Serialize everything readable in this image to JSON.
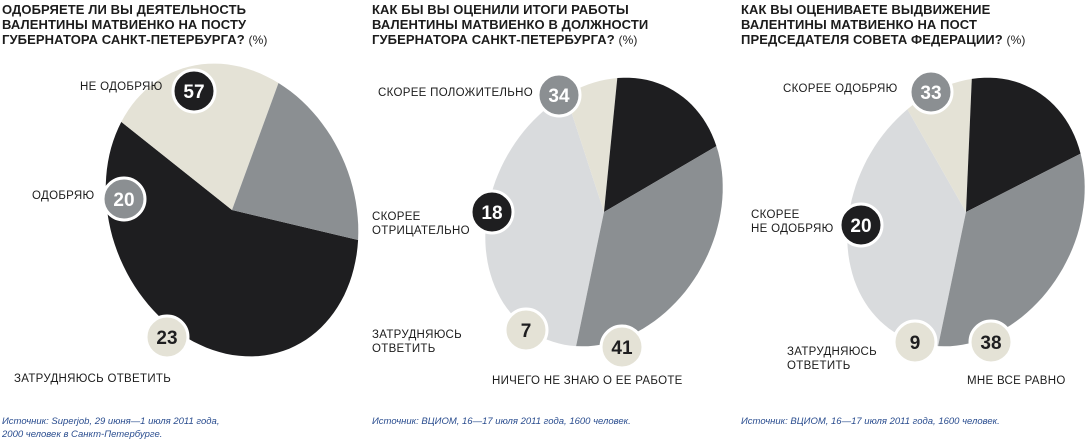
{
  "panels": [
    {
      "question": "ОДОБРЯЕТЕ ЛИ ВЫ ДЕЯТЕЛЬНОСТЬ\nВАЛЕНТИНЫ МАТВИЕНКО НА ПОСТУ\nГУБЕРНАТОРА САНКТ-ПЕТЕРБУРГА?",
      "unit": "(%)",
      "source": "Источник: Superjob, 29 июня—1 июля 2011 года,\n2000 человек в Санкт-Петербурге."
    },
    {
      "question": "КАК БЫ ВЫ ОЦЕНИЛИ ИТОГИ РАБОТЫ\nВАЛЕНТИНЫ МАТВИЕНКО В ДОЛЖНОСТИ\nГУБЕРНАТОРА САНКТ-ПЕТЕРБУРГА?",
      "unit": "(%)",
      "source": "Источник: ВЦИОМ, 16—17 июля 2011 года, 1600 человек."
    },
    {
      "question": "КАК ВЫ ОЦЕНИВАЕТЕ ВЫДВИЖЕНИЕ\nВАЛЕНТИНЫ МАТВИЕНКО НА ПОСТ\nПРЕДСЕДАТЕЛЯ СОВЕТА ФЕДЕРАЦИИ?",
      "unit": "(%)",
      "source": "Источник: ВЦИОМ, 16—17 июля 2011 года, 1600 человек."
    }
  ],
  "colors": {
    "dark": "#1e1e20",
    "mid": "#8b8f92",
    "light": "#d9dbdd",
    "cream": "#e4e2d6",
    "badge_dark": "#1e1e20",
    "badge_mid": "#8b8f92",
    "badge_light": "#e4e2d6"
  },
  "chart_data": [
    {
      "type": "pie",
      "title": "ОДОБРЯЕТЕ ЛИ ВЫ ДЕЯТЕЛЬНОСТЬ ВАЛЕНТИНЫ МАТВИЕНКО НА ПОСТУ ГУБЕРНАТОРА САНКТ-ПЕТЕРБУРГА? (%)",
      "slices": [
        {
          "label": "НЕ ОДОБРЯЮ",
          "value": 57,
          "color": "#1e1e20"
        },
        {
          "label": "ЗАТРУДНЯЮСЬ ОТВЕТИТЬ",
          "value": 23,
          "color": "#e4e2d6"
        },
        {
          "label": "ОДОБРЯЮ",
          "value": 20,
          "color": "#8b8f92"
        }
      ]
    },
    {
      "type": "pie",
      "title": "КАК БЫ ВЫ ОЦЕНИЛИ ИТОГИ РАБОТЫ ВАЛЕНТИНЫ МАТВИЕНКО В ДОЛЖНОСТИ ГУБЕРНАТОРА САНКТ-ПЕТЕРБУРГА? (%)",
      "slices": [
        {
          "label": "НИЧЕГО НЕ ЗНАЮ О ЕЕ РАБОТЕ",
          "value": 41,
          "color": "#d9dbdd"
        },
        {
          "label": "ЗАТРУДНЯЮСЬ ОТВЕТИТЬ",
          "value": 7,
          "color": "#e4e2d6"
        },
        {
          "label": "СКОРЕЕ ОТРИЦАТЕЛЬНО",
          "value": 18,
          "color": "#1e1e20"
        },
        {
          "label": "СКОРЕЕ ПОЛОЖИТЕЛЬНО",
          "value": 34,
          "color": "#8b8f92"
        }
      ]
    },
    {
      "type": "pie",
      "title": "КАК ВЫ ОЦЕНИВАЕТЕ ВЫДВИЖЕНИЕ ВАЛЕНТИНЫ МАТВИЕНКО НА ПОСТ ПРЕДСЕДАТЕЛЯ СОВЕТА ФЕДЕРАЦИИ? (%)",
      "slices": [
        {
          "label": "МНЕ ВСЕ РАВНО",
          "value": 38,
          "color": "#d9dbdd"
        },
        {
          "label": "ЗАТРУДНЯЮСЬ ОТВЕТИТЬ",
          "value": 9,
          "color": "#e4e2d6"
        },
        {
          "label": "СКОРЕЕ НЕ ОДОБРЯЮ",
          "value": 20,
          "color": "#1e1e20"
        },
        {
          "label": "СКОРЕЕ ОДОБРЯЮ",
          "value": 33,
          "color": "#8b8f92"
        }
      ]
    }
  ]
}
